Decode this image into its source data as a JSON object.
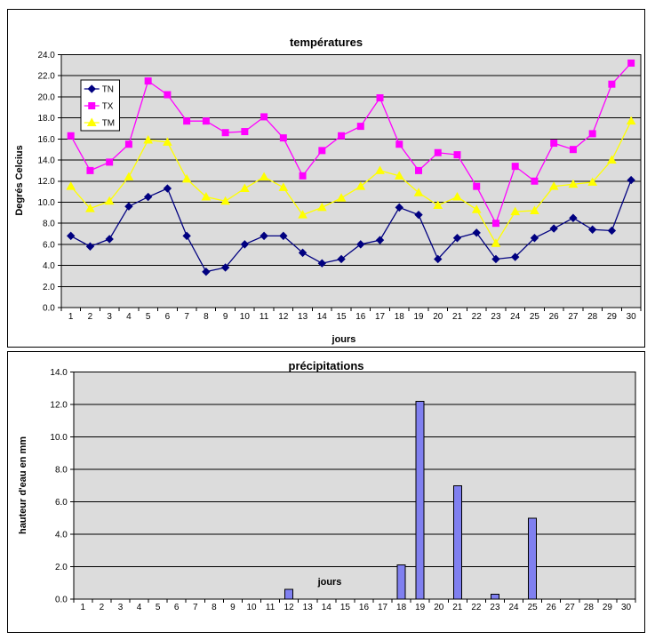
{
  "page": {
    "background": "#FFFFFF"
  },
  "colors": {
    "plot_background": "#DCDCDC",
    "gridline": "#000000",
    "tn_line": "#000080",
    "tx_line": "#FF00FF",
    "tm_line": "#FFFF00",
    "bar_fill": "#8080F0",
    "bar_border": "#000000"
  },
  "chart_data": [
    {
      "id": "temperatures",
      "type": "line",
      "title": "températures",
      "xlabel": "jours",
      "ylabel": "Degrés Celcius",
      "ylim": [
        0.0,
        24.0
      ],
      "ytick_step": 2.0,
      "ytick_labels": [
        "24.0",
        "22.0",
        "20.0",
        "18.0",
        "16.0",
        "14.0",
        "12.0",
        "10.0",
        "8.0",
        "6.0",
        "4.0",
        "2.0",
        "0.0"
      ],
      "grid": "horizontal",
      "plot_bg": "#DCDCDC",
      "legend": {
        "position": "inside-top-left",
        "entries": [
          "TN",
          "TX",
          "TM"
        ]
      },
      "categories": [
        1,
        2,
        3,
        4,
        5,
        6,
        7,
        8,
        9,
        10,
        11,
        12,
        13,
        14,
        15,
        16,
        17,
        18,
        19,
        20,
        21,
        22,
        23,
        24,
        25,
        26,
        27,
        28,
        29,
        30
      ],
      "series": [
        {
          "name": "TN",
          "color": "#000080",
          "marker": "diamond",
          "values": [
            6.8,
            5.8,
            6.5,
            9.6,
            10.5,
            11.3,
            6.8,
            3.4,
            3.8,
            6.0,
            6.8,
            6.8,
            5.2,
            4.2,
            4.6,
            6.0,
            6.4,
            9.5,
            8.8,
            4.6,
            6.6,
            7.1,
            4.6,
            4.8,
            6.6,
            7.5,
            8.5,
            7.4,
            7.3,
            12.1
          ]
        },
        {
          "name": "TX",
          "color": "#FF00FF",
          "marker": "square",
          "values": [
            16.3,
            13.0,
            13.8,
            15.5,
            21.5,
            20.2,
            17.7,
            17.7,
            16.6,
            16.7,
            18.1,
            16.1,
            12.5,
            14.9,
            16.3,
            17.2,
            19.9,
            15.5,
            13.0,
            14.7,
            14.5,
            11.5,
            8.0,
            13.4,
            12.0,
            15.6,
            15.0,
            16.5,
            21.2,
            23.2
          ]
        },
        {
          "name": "TM",
          "color": "#FFFF00",
          "marker": "triangle",
          "values": [
            11.5,
            9.4,
            10.1,
            12.4,
            15.9,
            15.7,
            12.2,
            10.5,
            10.1,
            11.3,
            12.4,
            11.4,
            8.8,
            9.5,
            10.4,
            11.5,
            13.0,
            12.5,
            10.9,
            9.7,
            10.5,
            9.3,
            6.1,
            9.1,
            9.2,
            11.5,
            11.7,
            11.9,
            14.0,
            17.7
          ]
        }
      ]
    },
    {
      "id": "precipitations",
      "type": "bar",
      "title": "précipitations",
      "xlabel": "jours",
      "ylabel": "hauteur d'eau en mm",
      "ylim": [
        0.0,
        14.0
      ],
      "ytick_step": 2.0,
      "ytick_labels": [
        "14.0",
        "12.0",
        "10.0",
        "8.0",
        "6.0",
        "4.0",
        "2.0",
        "0.0"
      ],
      "grid": "horizontal",
      "plot_bg": "#DCDCDC",
      "bar_color": "#8080F0",
      "bar_border": "#000000",
      "categories": [
        1,
        2,
        3,
        4,
        5,
        6,
        7,
        8,
        9,
        10,
        11,
        12,
        13,
        14,
        15,
        16,
        17,
        18,
        19,
        20,
        21,
        22,
        23,
        24,
        25,
        26,
        27,
        28,
        29,
        30
      ],
      "values": [
        0,
        0,
        0,
        0,
        0,
        0,
        0,
        0,
        0,
        0,
        0,
        0.6,
        0,
        0,
        0,
        0,
        0,
        2.1,
        12.2,
        0,
        7.0,
        0,
        0.3,
        0,
        5.0,
        0,
        0,
        0,
        0,
        0
      ]
    }
  ]
}
